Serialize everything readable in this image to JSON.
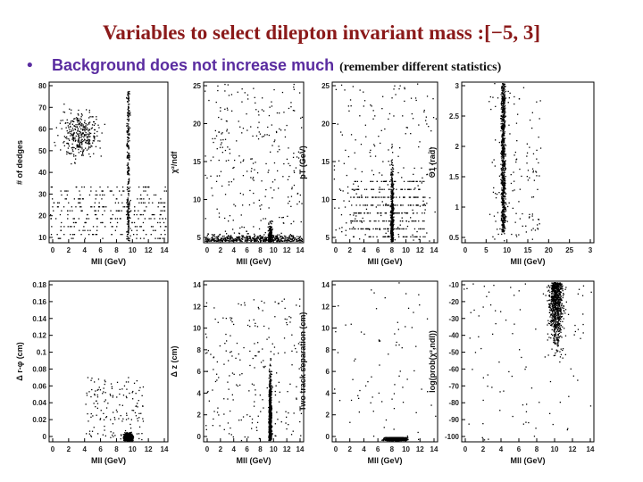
{
  "header": {
    "title": "Variables to select dilepton invariant mass :[−5, 3]",
    "bullet": "Background does not increase much",
    "bullet_note": "(remember different statistics)"
  },
  "panels": [
    {
      "ylabel": "# of dedges",
      "xlabel": "Mll (GeV)",
      "xticks": [
        "0",
        "2",
        "4",
        "6",
        "8",
        "10",
        "12",
        "14"
      ],
      "yticks": [
        "10",
        "20",
        "30",
        "40",
        "50",
        "60",
        "70",
        "80"
      ]
    },
    {
      "ylabel": "χ²/ndf",
      "xlabel": "Mll (GeV)",
      "xticks": [
        "0",
        "2",
        "4",
        "6",
        "8",
        "10",
        "12",
        "14"
      ],
      "yticks": [
        "5",
        "10",
        "15",
        "20",
        "25"
      ]
    },
    {
      "ylabel": "pT (GeV)",
      "xlabel": "Mll (GeV)",
      "xticks": [
        "0",
        "2",
        "4",
        "6",
        "8",
        "10",
        "12",
        "14"
      ],
      "yticks": [
        "5",
        "10",
        "15",
        "20",
        "25"
      ]
    },
    {
      "ylabel": "Θ1 (rad)",
      "xlabel": "Mll (GeV)",
      "xticks": [
        "0",
        "5",
        "10",
        "15",
        "20",
        "25",
        "3"
      ],
      "yticks": [
        "0.5",
        "1",
        "1.5",
        "2",
        "2.5",
        "3"
      ]
    },
    {
      "ylabel": "Δ r-φ (cm)",
      "xlabel": "Mll (GeV)",
      "xticks": [
        "0",
        "2",
        "4",
        "6",
        "8",
        "10",
        "12",
        "14"
      ],
      "yticks": [
        "0",
        "0.02",
        "0.04",
        "0.06",
        "0.08",
        "0.1",
        "0.12",
        "0.14",
        "0.16",
        "0.18"
      ]
    },
    {
      "ylabel": "Δ z (cm)",
      "xlabel": "Mll (GeV)",
      "xticks": [
        "0",
        "2",
        "4",
        "6",
        "8",
        "10",
        "12",
        "14"
      ],
      "yticks": [
        "0",
        "2",
        "4",
        "6",
        "8",
        "10",
        "12",
        "14"
      ]
    },
    {
      "ylabel": "Two track separation (cm)",
      "xlabel": "Mll (GeV)",
      "xticks": [
        "0",
        "2",
        "4",
        "6",
        "8",
        "10",
        "12",
        "14"
      ],
      "yticks": [
        "0",
        "2",
        "4",
        "6",
        "8",
        "10",
        "12",
        "14"
      ]
    },
    {
      "ylabel": "log(prob(χ²,ndl))",
      "xlabel": "Mll (GeV)",
      "xticks": [
        "0",
        "2",
        "4",
        "6",
        "8",
        "10",
        "12",
        "14"
      ],
      "yticks": [
        "-100",
        "-90",
        "-80",
        "-70",
        "-60",
        "-50",
        "-40",
        "-30",
        "-20",
        "-10"
      ]
    }
  ]
}
